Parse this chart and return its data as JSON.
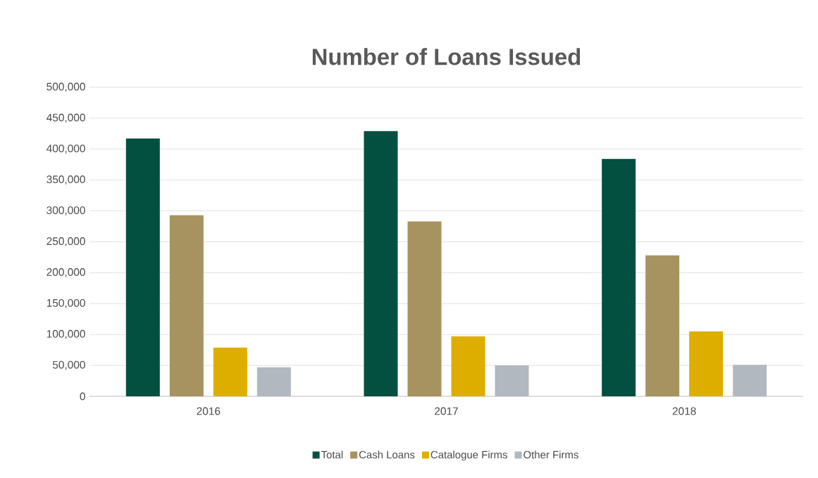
{
  "chart_data": {
    "type": "bar",
    "title": "Number of Loans Issued",
    "categories": [
      "2016",
      "2017",
      "2018"
    ],
    "series": [
      {
        "name": "Total",
        "color": "#034f40",
        "values": [
          417000,
          429000,
          384000
        ]
      },
      {
        "name": "Cash Loans",
        "color": "#a69360",
        "values": [
          293000,
          283000,
          228000
        ]
      },
      {
        "name": "Catalogue Firms",
        "color": "#ddae00",
        "values": [
          79000,
          97000,
          105000
        ]
      },
      {
        "name": "Other Firms",
        "color": "#b1b8bf",
        "values": [
          47000,
          50000,
          51000
        ]
      }
    ],
    "ylim": [
      0,
      500000
    ],
    "yticks": [
      0,
      {
        "value": 50000,
        "label": "50,000"
      },
      {
        "value": 100000,
        "label": "100,000"
      },
      {
        "value": 150000,
        "label": "150,000"
      },
      {
        "value": 200000,
        "label": "200,000"
      },
      {
        "value": 250000,
        "label": "250,000"
      },
      {
        "value": 300000,
        "label": "300,000"
      },
      {
        "value": 350000,
        "label": "350,000"
      },
      {
        "value": 400000,
        "label": "400,000"
      },
      {
        "value": 450000,
        "label": "450,000"
      },
      {
        "value": 500000,
        "label": "500,000"
      }
    ],
    "grid": "y",
    "legend": "bottom"
  }
}
